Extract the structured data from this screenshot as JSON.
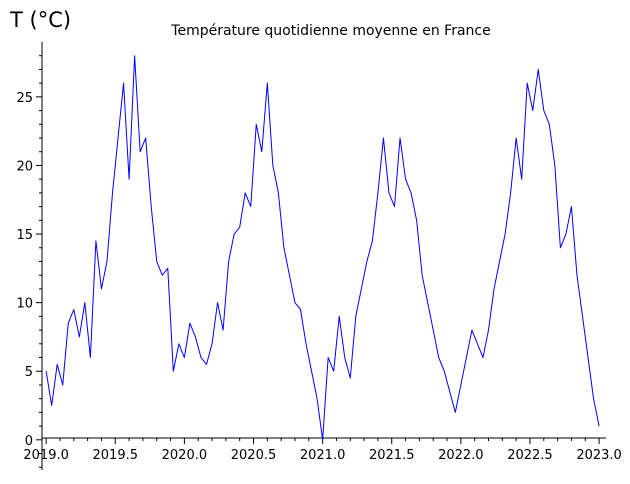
{
  "chart_data": {
    "type": "line",
    "title": "Température quotidienne moyenne en France",
    "ylabel": "T (°C)",
    "xlabel": "",
    "xlim": [
      2018.97,
      2023.05
    ],
    "ylim": [
      -2.2,
      29
    ],
    "x_ticks": [
      2019.0,
      2019.5,
      2020.0,
      2020.5,
      2021.0,
      2021.5,
      2022.0,
      2022.5,
      2023.0
    ],
    "x_tick_labels": [
      "2019.0",
      "2019.5",
      "2020.0",
      "2020.5",
      "2021.0",
      "2021.5",
      "2022.0",
      "2022.5",
      "2023.0"
    ],
    "y_ticks": [
      0,
      5,
      10,
      15,
      20,
      25
    ],
    "y_tick_labels": [
      "0",
      "5",
      "10",
      "15",
      "20",
      "25"
    ],
    "grid": false,
    "legend": "none",
    "colors": {
      "line": "#0000ff",
      "axis": "#000000"
    },
    "series": [
      {
        "x": [
          2019.0,
          2019.04,
          2019.08,
          2019.12,
          2019.16,
          2019.2,
          2019.24,
          2019.28,
          2019.32,
          2019.36,
          2019.4,
          2019.44,
          2019.48,
          2019.52,
          2019.56,
          2019.6,
          2019.64,
          2019.68,
          2019.72,
          2019.76,
          2019.8,
          2019.84,
          2019.88,
          2019.92,
          2019.96,
          2020.0,
          2020.04,
          2020.08,
          2020.12,
          2020.16,
          2020.2,
          2020.24,
          2020.28,
          2020.32,
          2020.36,
          2020.4,
          2020.44,
          2020.48,
          2020.52,
          2020.56,
          2020.6,
          2020.64,
          2020.68,
          2020.72,
          2020.76,
          2020.8,
          2020.84,
          2020.88,
          2020.92,
          2020.96,
          2021.0,
          2021.04,
          2021.08,
          2021.12,
          2021.16,
          2021.2,
          2021.24,
          2021.28,
          2021.32,
          2021.36,
          2021.4,
          2021.44,
          2021.48,
          2021.52,
          2021.56,
          2021.6,
          2021.64,
          2021.68,
          2021.72,
          2021.76,
          2021.8,
          2021.84,
          2021.88,
          2021.92,
          2021.96,
          2022.0,
          2022.04,
          2022.08,
          2022.12,
          2022.16,
          2022.2,
          2022.24,
          2022.28,
          2022.32,
          2022.36,
          2022.4,
          2022.44,
          2022.48,
          2022.52,
          2022.56,
          2022.6,
          2022.64,
          2022.68,
          2022.72,
          2022.76,
          2022.8,
          2022.84,
          2022.88,
          2022.92,
          2022.96,
          2023.0
        ],
        "y": [
          5.0,
          2.5,
          5.5,
          4.0,
          8.5,
          9.5,
          7.5,
          10.0,
          6.0,
          14.5,
          11.0,
          13.0,
          18.0,
          22.0,
          26.0,
          19.0,
          28.0,
          21.0,
          22.0,
          17.0,
          13.0,
          12.0,
          12.5,
          5.0,
          7.0,
          6.0,
          8.5,
          7.5,
          6.0,
          5.5,
          7.0,
          10.0,
          8.0,
          13.0,
          15.0,
          15.5,
          18.0,
          17.0,
          23.0,
          21.0,
          26.0,
          20.0,
          18.0,
          14.0,
          12.0,
          10.0,
          9.5,
          7.0,
          5.0,
          3.0,
          0.0,
          6.0,
          5.0,
          9.0,
          6.0,
          4.5,
          9.0,
          11.0,
          13.0,
          14.5,
          18.0,
          22.0,
          18.0,
          17.0,
          22.0,
          19.0,
          18.0,
          16.0,
          12.0,
          10.0,
          8.0,
          6.0,
          5.0,
          3.5,
          2.0,
          4.0,
          6.0,
          8.0,
          7.0,
          6.0,
          8.0,
          11.0,
          13.0,
          15.0,
          18.0,
          22.0,
          19.0,
          26.0,
          24.0,
          27.0,
          24.0,
          23.0,
          20.0,
          14.0,
          15.0,
          17.0,
          12.0,
          9.0,
          6.0,
          3.0,
          1.0
        ]
      }
    ]
  }
}
